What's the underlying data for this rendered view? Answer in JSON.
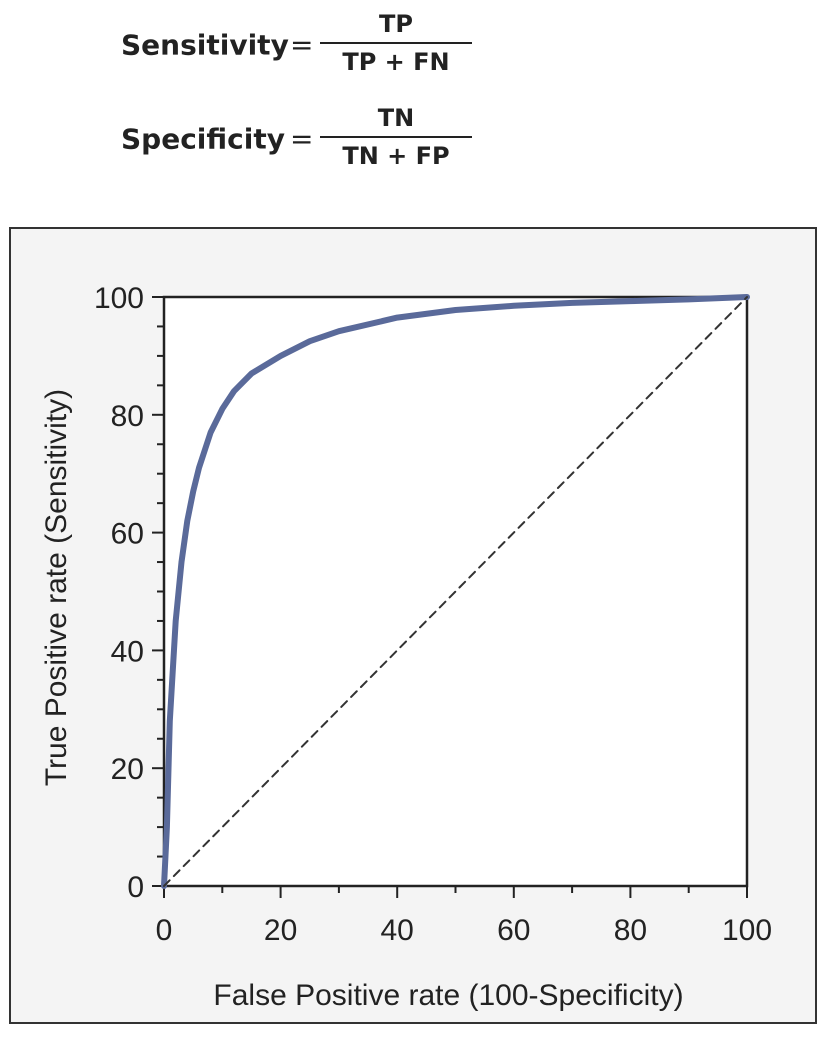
{
  "formulas": {
    "sensitivity": {
      "label": "Sensitivity",
      "eq": "=",
      "numerator": "TP",
      "denominator": "TP + FN"
    },
    "specificity": {
      "label": "Specificity",
      "eq": "=",
      "numerator": "TN",
      "denominator": "TN + FP"
    }
  },
  "chart_data": {
    "type": "line",
    "title": "",
    "xlabel": "False Positive rate (100-Specificity)",
    "ylabel": "True Positive rate (Sensitivity)",
    "xlim": [
      0,
      100
    ],
    "ylim": [
      0,
      100
    ],
    "xticks": [
      "0",
      "20",
      "40",
      "60",
      "80",
      "100"
    ],
    "yticks": [
      "0",
      "20",
      "40",
      "60",
      "80",
      "100"
    ],
    "grid": false,
    "series": [
      {
        "style": "solid",
        "color": "#5a6a9a",
        "x": [
          0,
          0.5,
          1,
          2,
          3,
          4,
          5,
          6,
          8,
          10,
          12,
          15,
          20,
          25,
          30,
          40,
          50,
          60,
          70,
          80,
          90,
          100
        ],
        "y": [
          0,
          10,
          28,
          45,
          55,
          62,
          67,
          71,
          77,
          81,
          84,
          87,
          90,
          92.5,
          94.2,
          96.5,
          97.8,
          98.5,
          99,
          99.3,
          99.6,
          100
        ]
      },
      {
        "style": "dashed",
        "color": "#333333",
        "x": [
          0,
          100
        ],
        "y": [
          0,
          100
        ]
      }
    ]
  }
}
